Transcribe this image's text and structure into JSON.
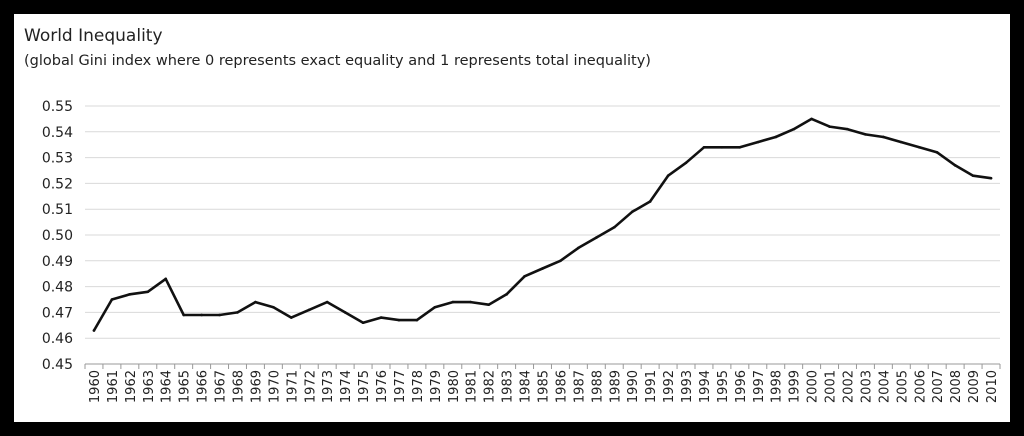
{
  "chart_data": {
    "type": "line",
    "title": "World Inequality",
    "subtitle": "(global Gini index where 0 represents exact equality and 1 represents total inequality)",
    "xlabel": "",
    "ylabel": "",
    "ylim": [
      0.45,
      0.55
    ],
    "yticks": [
      "0.45",
      "0.46",
      "0.47",
      "0.48",
      "0.49",
      "0.50",
      "0.51",
      "0.52",
      "0.53",
      "0.54",
      "0.55"
    ],
    "grid": true,
    "legend": "none",
    "line_color": "#111111",
    "grid_color": "#d9d9d9",
    "x": [
      "1960",
      "1961",
      "1962",
      "1963",
      "1964",
      "1965",
      "1966",
      "1967",
      "1968",
      "1969",
      "1970",
      "1971",
      "1972",
      "1973",
      "1974",
      "1975",
      "1976",
      "1977",
      "1978",
      "1979",
      "1980",
      "1981",
      "1982",
      "1983",
      "1984",
      "1985",
      "1986",
      "1987",
      "1988",
      "1989",
      "1990",
      "1991",
      "1992",
      "1993",
      "1994",
      "1995",
      "1996",
      "1997",
      "1998",
      "1999",
      "2000",
      "2001",
      "2002",
      "2003",
      "2004",
      "2005",
      "2006",
      "2007",
      "2008",
      "2009",
      "2010"
    ],
    "series": [
      {
        "values": [
          0.463,
          0.475,
          0.477,
          0.478,
          0.483,
          0.469,
          0.469,
          0.469,
          0.47,
          0.474,
          0.472,
          0.468,
          0.471,
          0.474,
          0.47,
          0.466,
          0.468,
          0.467,
          0.467,
          0.472,
          0.474,
          0.474,
          0.473,
          0.477,
          0.484,
          0.487,
          0.49,
          0.495,
          0.499,
          0.503,
          0.509,
          0.513,
          0.523,
          0.528,
          0.534,
          0.534,
          0.534,
          0.536,
          0.538,
          0.541,
          0.545,
          0.542,
          0.541,
          0.539,
          0.538,
          0.536,
          0.534,
          0.532,
          0.527,
          0.523,
          0.522
        ]
      }
    ]
  }
}
